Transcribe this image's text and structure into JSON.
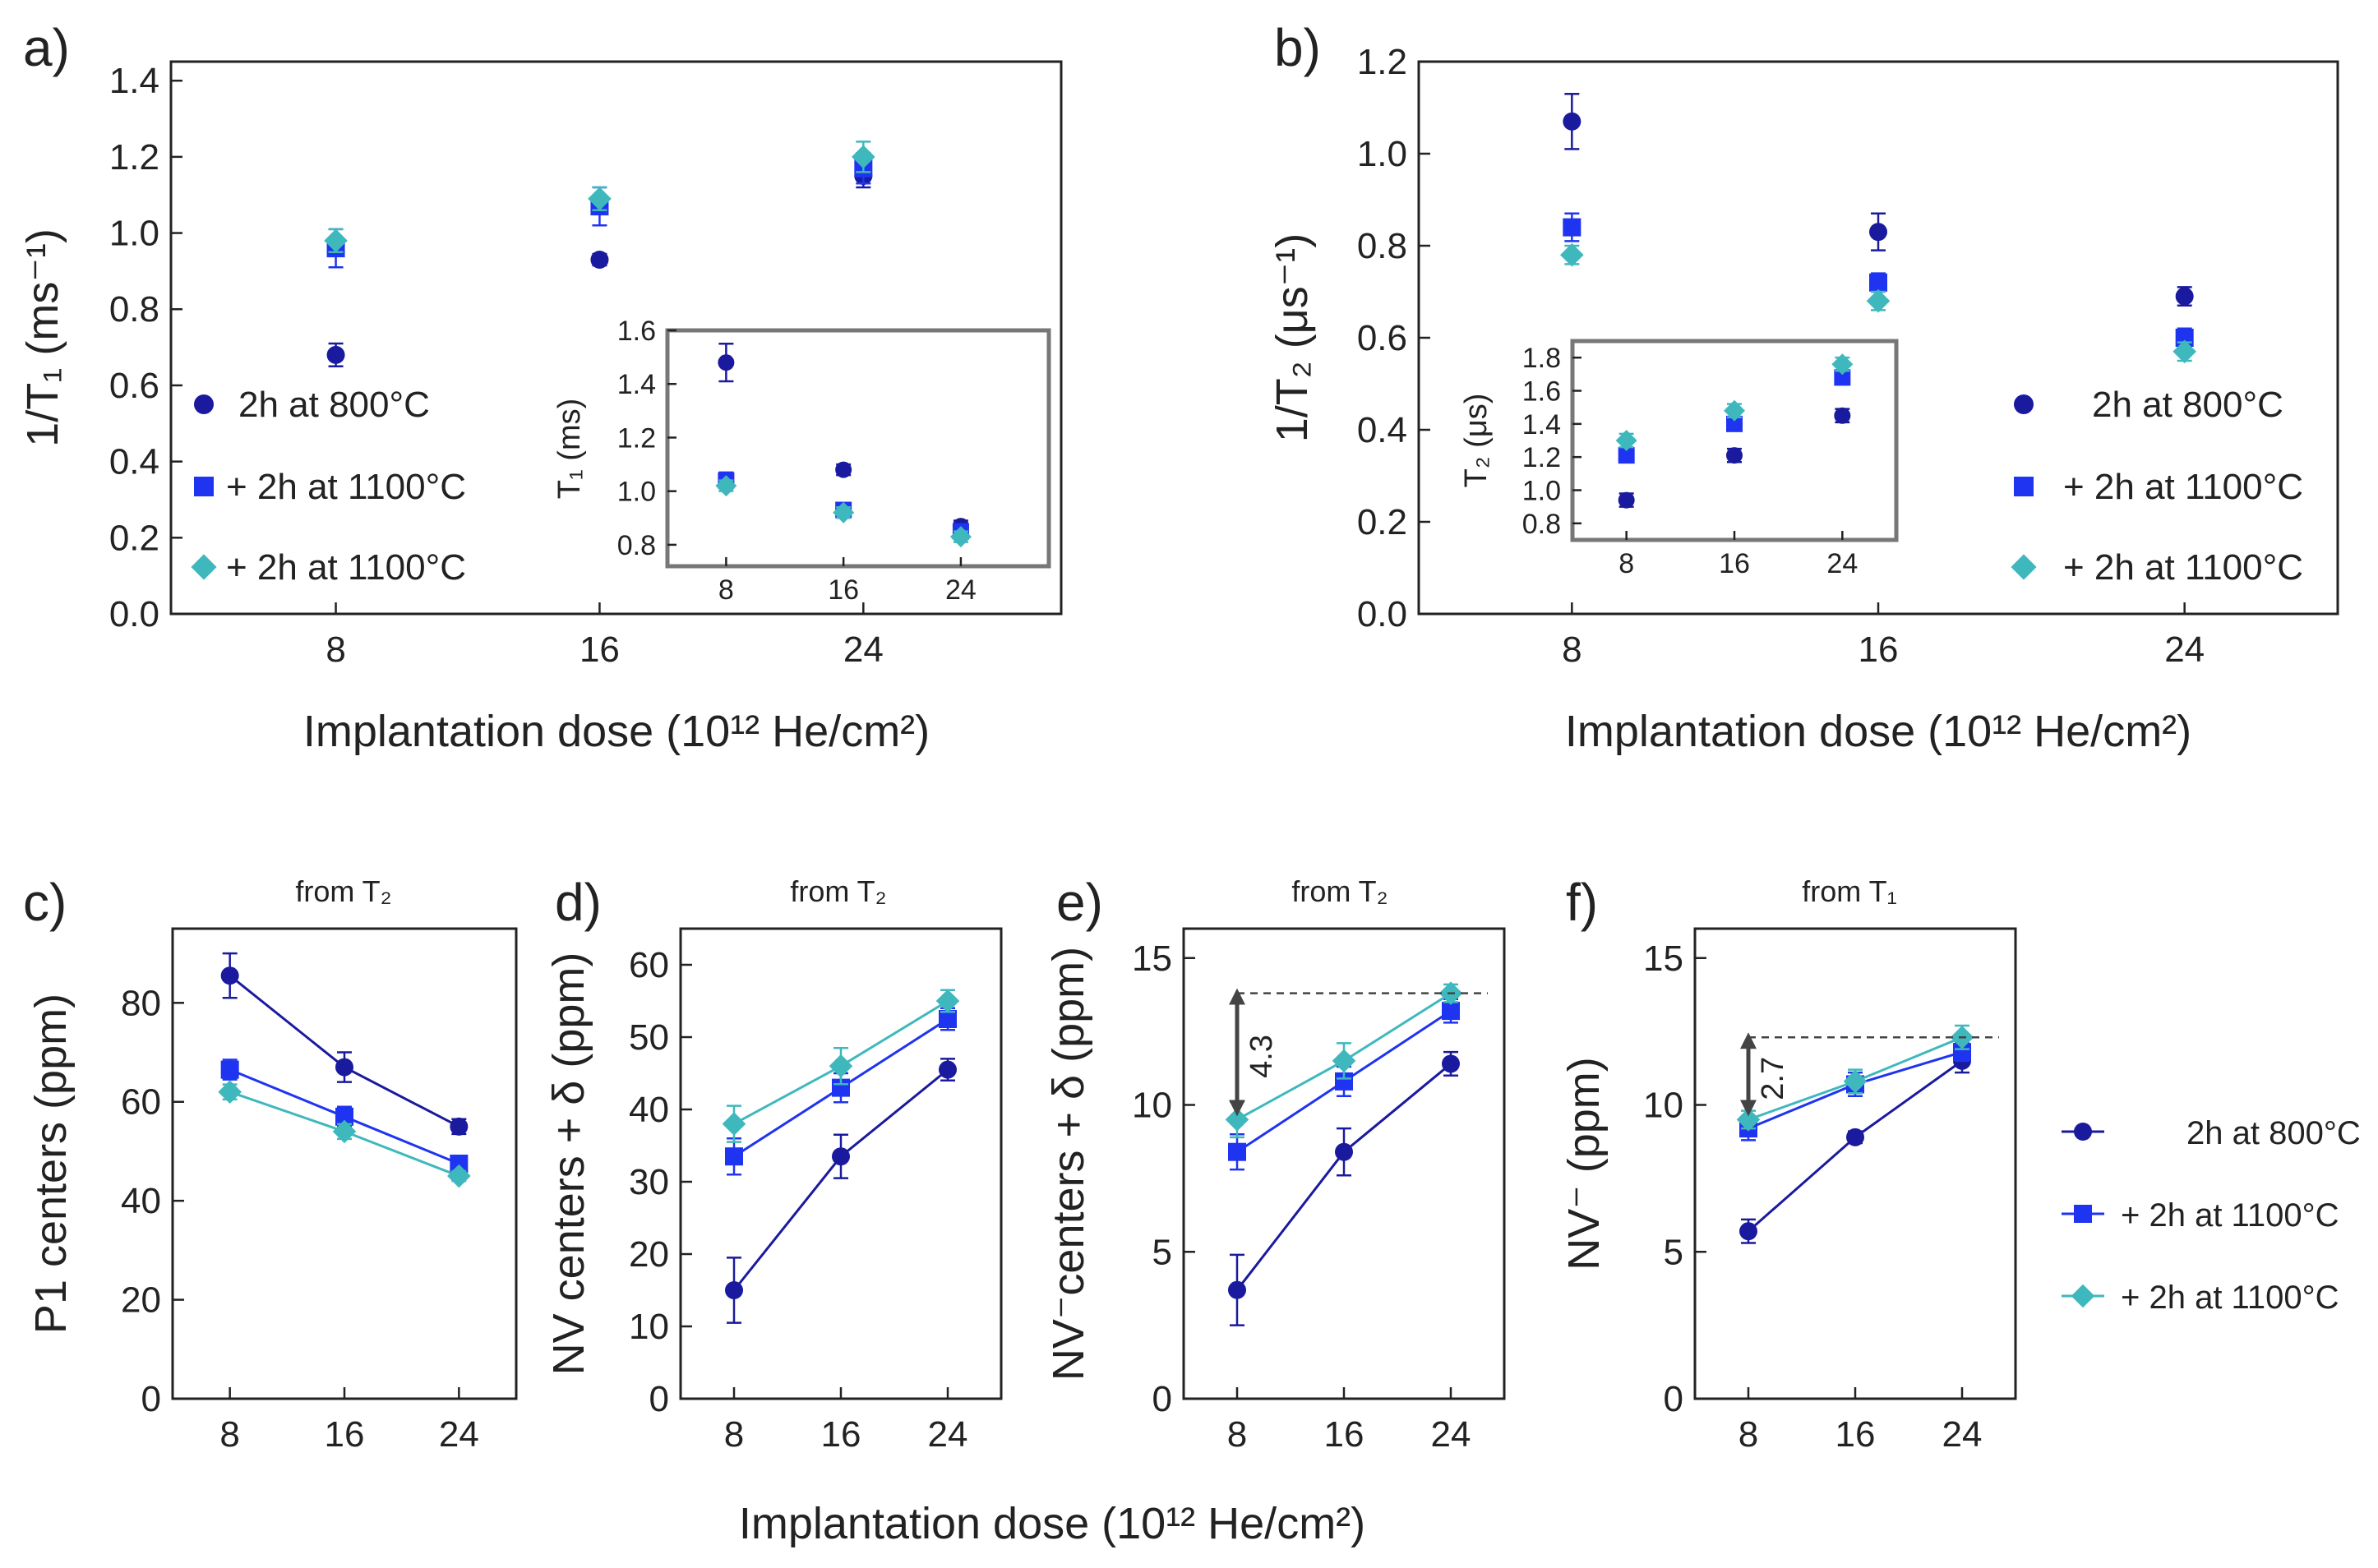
{
  "colors": {
    "s1": "#1a1a9e",
    "s2": "#1f34f0",
    "s3": "#3fb8bd",
    "frame": "#222222",
    "inset_frame": "#777777",
    "guide": "#444444"
  },
  "shared_legend": [
    "2h at   800°C",
    "+ 2h at 1100°C",
    "+ 2h at 1100°C"
  ],
  "bottom_xlabel": "Implantation dose (10¹² He/cm²)",
  "chart_data": [
    {
      "id": "a",
      "panel_label": "a)",
      "type": "scatter",
      "ylabel": "1/T₁ (ms⁻¹)",
      "xlabel": "Implantation dose (10¹² He/cm²)",
      "xlim": [
        3,
        30
      ],
      "ylim": [
        0,
        1.45
      ],
      "xticks": [
        8,
        16,
        24
      ],
      "yticks": [
        "0.0",
        "0.2",
        "0.4",
        "0.6",
        "0.8",
        "1.0",
        "1.2",
        "1.4"
      ],
      "legend": [
        "2h at 800°C",
        "+ 2h at 1100°C",
        "+ 2h at 1100°C"
      ],
      "series": [
        {
          "name": "2h at 800°C",
          "marker": "circle",
          "x": [
            8,
            16,
            24
          ],
          "y": [
            0.68,
            0.93,
            1.15
          ],
          "err": [
            0.03,
            0.015,
            0.03
          ]
        },
        {
          "name": "+ 2h at 1100°C",
          "marker": "square",
          "x": [
            8,
            16,
            24
          ],
          "y": [
            0.96,
            1.07,
            1.17
          ],
          "err": [
            0.05,
            0.05,
            0.04
          ]
        },
        {
          "name": "+ 2h at 1100°C",
          "marker": "diamond",
          "x": [
            8,
            16,
            24
          ],
          "y": [
            0.98,
            1.09,
            1.2
          ],
          "err": [
            0.03,
            0.03,
            0.04
          ]
        }
      ],
      "inset": {
        "ylabel": "T₁ (ms)",
        "xlim": [
          4,
          30
        ],
        "ylim": [
          0.72,
          1.6
        ],
        "xticks": [
          8,
          16,
          24
        ],
        "yticks": [
          "0.8",
          "1.0",
          "1.2",
          "1.4",
          "1.6"
        ],
        "series": [
          {
            "marker": "circle",
            "x": [
              8,
              16,
              24
            ],
            "y": [
              1.48,
              1.08,
              0.87
            ],
            "err": [
              0.07,
              0.02,
              0.02
            ]
          },
          {
            "marker": "square",
            "x": [
              8,
              16,
              24
            ],
            "y": [
              1.04,
              0.93,
              0.85
            ],
            "err": [
              0.03,
              0.02,
              0.02
            ]
          },
          {
            "marker": "diamond",
            "x": [
              8,
              16,
              24
            ],
            "y": [
              1.02,
              0.92,
              0.83
            ],
            "err": [
              0.02,
              0.02,
              0.02
            ]
          }
        ]
      }
    },
    {
      "id": "b",
      "panel_label": "b)",
      "type": "scatter",
      "ylabel": "1/T₂ (μs⁻¹)",
      "xlabel": "Implantation dose (10¹² He/cm²)",
      "xlim": [
        4,
        28
      ],
      "ylim": [
        0,
        1.2
      ],
      "xticks": [
        8,
        16,
        24
      ],
      "yticks": [
        "0.0",
        "0.2",
        "0.4",
        "0.6",
        "0.8",
        "1.0",
        "1.2"
      ],
      "legend": [
        "2h at 800°C",
        "+ 2h at 1100°C",
        "+ 2h at 1100°C"
      ],
      "series": [
        {
          "name": "2h at 800°C",
          "marker": "circle",
          "x": [
            8,
            16,
            24
          ],
          "y": [
            1.07,
            0.83,
            0.69
          ],
          "err": [
            0.06,
            0.04,
            0.02
          ]
        },
        {
          "name": "+ 2h at 1100°C",
          "marker": "square",
          "x": [
            8,
            16,
            24
          ],
          "y": [
            0.84,
            0.72,
            0.6
          ],
          "err": [
            0.03,
            0.02,
            0.02
          ]
        },
        {
          "name": "+ 2h at 1100°C",
          "marker": "diamond",
          "x": [
            8,
            16,
            24
          ],
          "y": [
            0.78,
            0.68,
            0.57
          ],
          "err": [
            0.02,
            0.02,
            0.02
          ]
        }
      ],
      "inset": {
        "ylabel": "T₂ (μs)",
        "xlim": [
          4,
          28
        ],
        "ylim": [
          0.7,
          1.9
        ],
        "xticks": [
          8,
          16,
          24
        ],
        "yticks": [
          "0.8",
          "1.0",
          "1.2",
          "1.4",
          "1.6",
          "1.8"
        ],
        "series": [
          {
            "marker": "circle",
            "x": [
              8,
              16,
              24
            ],
            "y": [
              0.94,
              1.21,
              1.45
            ],
            "err": [
              0.04,
              0.04,
              0.04
            ]
          },
          {
            "marker": "square",
            "x": [
              8,
              16,
              24
            ],
            "y": [
              1.21,
              1.4,
              1.68
            ],
            "err": [
              0.04,
              0.04,
              0.04
            ]
          },
          {
            "marker": "diamond",
            "x": [
              8,
              16,
              24
            ],
            "y": [
              1.3,
              1.48,
              1.76
            ],
            "err": [
              0.04,
              0.04,
              0.04
            ]
          }
        ]
      }
    },
    {
      "id": "c",
      "panel_label": "c)",
      "type": "line",
      "title": "from T₂",
      "ylabel": "P1 centers (ppm)",
      "xlim": [
        4,
        28
      ],
      "ylim": [
        0,
        95
      ],
      "xticks": [
        8,
        16,
        24
      ],
      "yticks": [
        "0",
        "20",
        "40",
        "60",
        "80"
      ],
      "series": [
        {
          "name": "2h at 800°C",
          "marker": "circle",
          "x": [
            8,
            16,
            24
          ],
          "y": [
            85.5,
            67,
            55
          ],
          "err": [
            4.5,
            3,
            1.5
          ]
        },
        {
          "name": "+ 2h at 1100°C",
          "marker": "square",
          "x": [
            8,
            16,
            24
          ],
          "y": [
            66.5,
            57,
            47.5
          ],
          "err": [
            2,
            2,
            1.5
          ]
        },
        {
          "name": "+ 2h at 1100°C",
          "marker": "diamond",
          "x": [
            8,
            16,
            24
          ],
          "y": [
            62,
            54,
            45
          ],
          "err": [
            1.5,
            1.5,
            1
          ]
        }
      ]
    },
    {
      "id": "d",
      "panel_label": "d)",
      "type": "line",
      "title": "from T₂",
      "ylabel": "NV centers + δ (ppm)",
      "xlim": [
        4,
        28
      ],
      "ylim": [
        0,
        65
      ],
      "xticks": [
        8,
        16,
        24
      ],
      "yticks": [
        "0",
        "10",
        "20",
        "30",
        "40",
        "50",
        "60"
      ],
      "series": [
        {
          "name": "2h at 800°C",
          "marker": "circle",
          "x": [
            8,
            16,
            24
          ],
          "y": [
            15,
            33.5,
            45.5
          ],
          "err": [
            4.5,
            3,
            1.5
          ]
        },
        {
          "name": "+ 2h at 1100°C",
          "marker": "square",
          "x": [
            8,
            16,
            24
          ],
          "y": [
            33.5,
            43,
            52.5
          ],
          "err": [
            2.5,
            2,
            1.5
          ]
        },
        {
          "name": "+ 2h at 1100°C",
          "marker": "diamond",
          "x": [
            8,
            16,
            24
          ],
          "y": [
            38,
            46,
            55
          ],
          "err": [
            2.5,
            2.5,
            1.5
          ]
        }
      ]
    },
    {
      "id": "e",
      "panel_label": "e)",
      "type": "line",
      "title": "from T₂",
      "ylabel": "NV⁻centers + δ (ppm)",
      "xlim": [
        4,
        28
      ],
      "ylim": [
        0,
        16
      ],
      "xticks": [
        8,
        16,
        24
      ],
      "yticks": [
        "0",
        "5",
        "10",
        "15"
      ],
      "annotation": {
        "text": "4.3",
        "from": 9.5,
        "to": 13.8
      },
      "series": [
        {
          "name": "2h at 800°C",
          "marker": "circle",
          "x": [
            8,
            16,
            24
          ],
          "y": [
            3.7,
            8.4,
            11.4
          ],
          "err": [
            1.2,
            0.8,
            0.4
          ]
        },
        {
          "name": "+ 2h at 1100°C",
          "marker": "square",
          "x": [
            8,
            16,
            24
          ],
          "y": [
            8.4,
            10.8,
            13.2
          ],
          "err": [
            0.6,
            0.5,
            0.4
          ]
        },
        {
          "name": "+ 2h at 1100°C",
          "marker": "diamond",
          "x": [
            8,
            16,
            24
          ],
          "y": [
            9.5,
            11.5,
            13.8
          ],
          "err": [
            0.6,
            0.6,
            0.3
          ]
        }
      ]
    },
    {
      "id": "f",
      "panel_label": "f)",
      "type": "line",
      "title": "from T₁",
      "ylabel": "NV⁻ (ppm)",
      "xlim": [
        4,
        28
      ],
      "ylim": [
        0,
        16
      ],
      "xticks": [
        8,
        16,
        24
      ],
      "yticks": [
        "0",
        "5",
        "10",
        "15"
      ],
      "annotation": {
        "text": "2.7",
        "from": 9.5,
        "to": 12.3
      },
      "series": [
        {
          "name": "2h at 800°C",
          "marker": "circle",
          "x": [
            8,
            16,
            24
          ],
          "y": [
            5.7,
            8.9,
            11.5
          ],
          "err": [
            0.4,
            0.2,
            0.4
          ]
        },
        {
          "name": "+ 2h at 1100°C",
          "marker": "square",
          "x": [
            8,
            16,
            24
          ],
          "y": [
            9.2,
            10.7,
            11.8
          ],
          "err": [
            0.4,
            0.4,
            0.3
          ]
        },
        {
          "name": "+ 2h at 1100°C",
          "marker": "diamond",
          "x": [
            8,
            16,
            24
          ],
          "y": [
            9.5,
            10.8,
            12.3
          ],
          "err": [
            0.3,
            0.4,
            0.4
          ]
        }
      ]
    }
  ]
}
